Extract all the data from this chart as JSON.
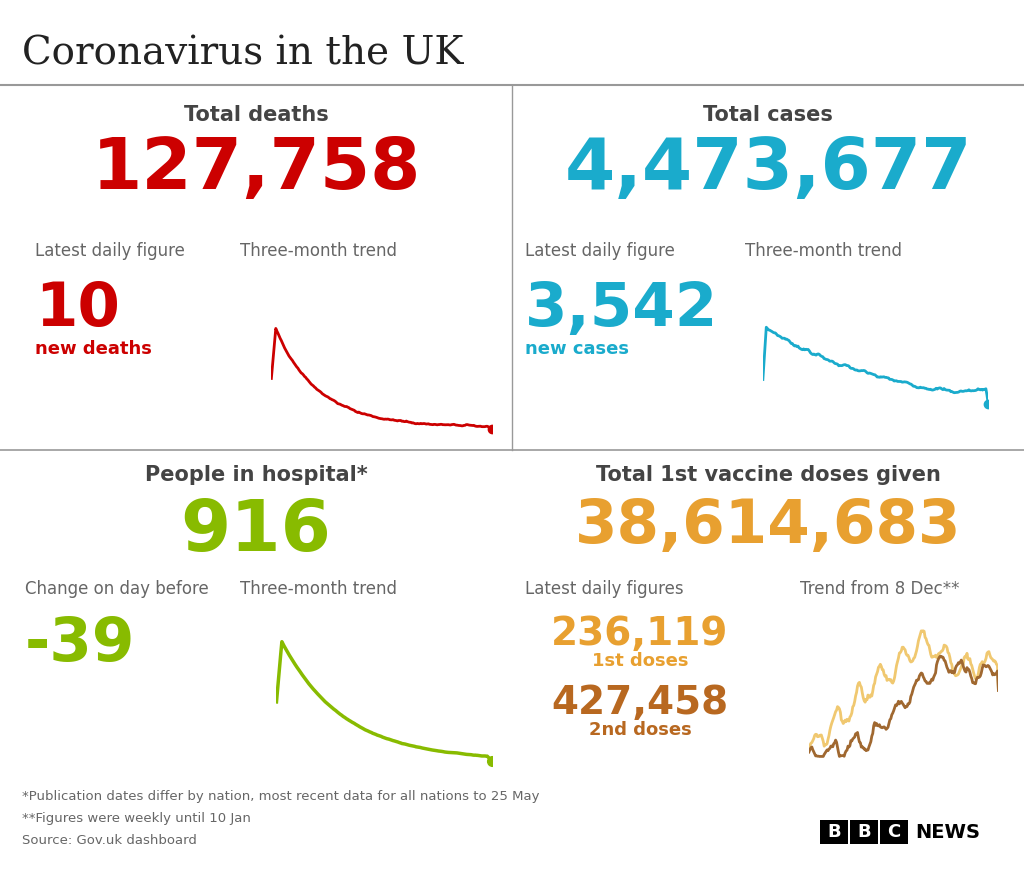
{
  "title": "Coronavirus in the UK",
  "bg_color": "#ffffff",
  "text_color_dark": "#444444",
  "text_color_gray": "#666666",
  "deaths_total": "127,758",
  "deaths_color": "#cc0000",
  "deaths_label": "Total deaths",
  "deaths_daily": "10",
  "deaths_daily_label": "new deaths",
  "deaths_sublabel1": "Latest daily figure",
  "deaths_sublabel2": "Three-month trend",
  "cases_total": "4,473,677",
  "cases_color": "#1aabcc",
  "cases_label": "Total cases",
  "cases_daily": "3,542",
  "cases_daily_label": "new cases",
  "cases_sublabel1": "Latest daily figure",
  "cases_sublabel2": "Three-month trend",
  "hospital_total": "916",
  "hospital_color": "#88bb00",
  "hospital_label": "People in hospital*",
  "hospital_daily": "-39",
  "hospital_sublabel1": "Change on day before",
  "hospital_sublabel2": "Three-month trend",
  "vaccine_total": "38,614,683",
  "vaccine_color": "#e8a030",
  "vaccine_color2": "#b86820",
  "vaccine_label": "Total 1st vaccine doses given",
  "vaccine_daily_label": "Latest daily figures",
  "vaccine_dose1": "236,119",
  "vaccine_dose1_label": "1st doses",
  "vaccine_dose2": "427,458",
  "vaccine_dose2_label": "2nd doses",
  "vaccine_trend_label": "Trend from 8 Dec**",
  "footnote1": "*Publication dates differ by nation, most recent data for all nations to 25 May",
  "footnote2": "**Figures were weekly until 10 Jan",
  "footnote3": "Source: Gov.uk dashboard",
  "divider_color": "#999999"
}
